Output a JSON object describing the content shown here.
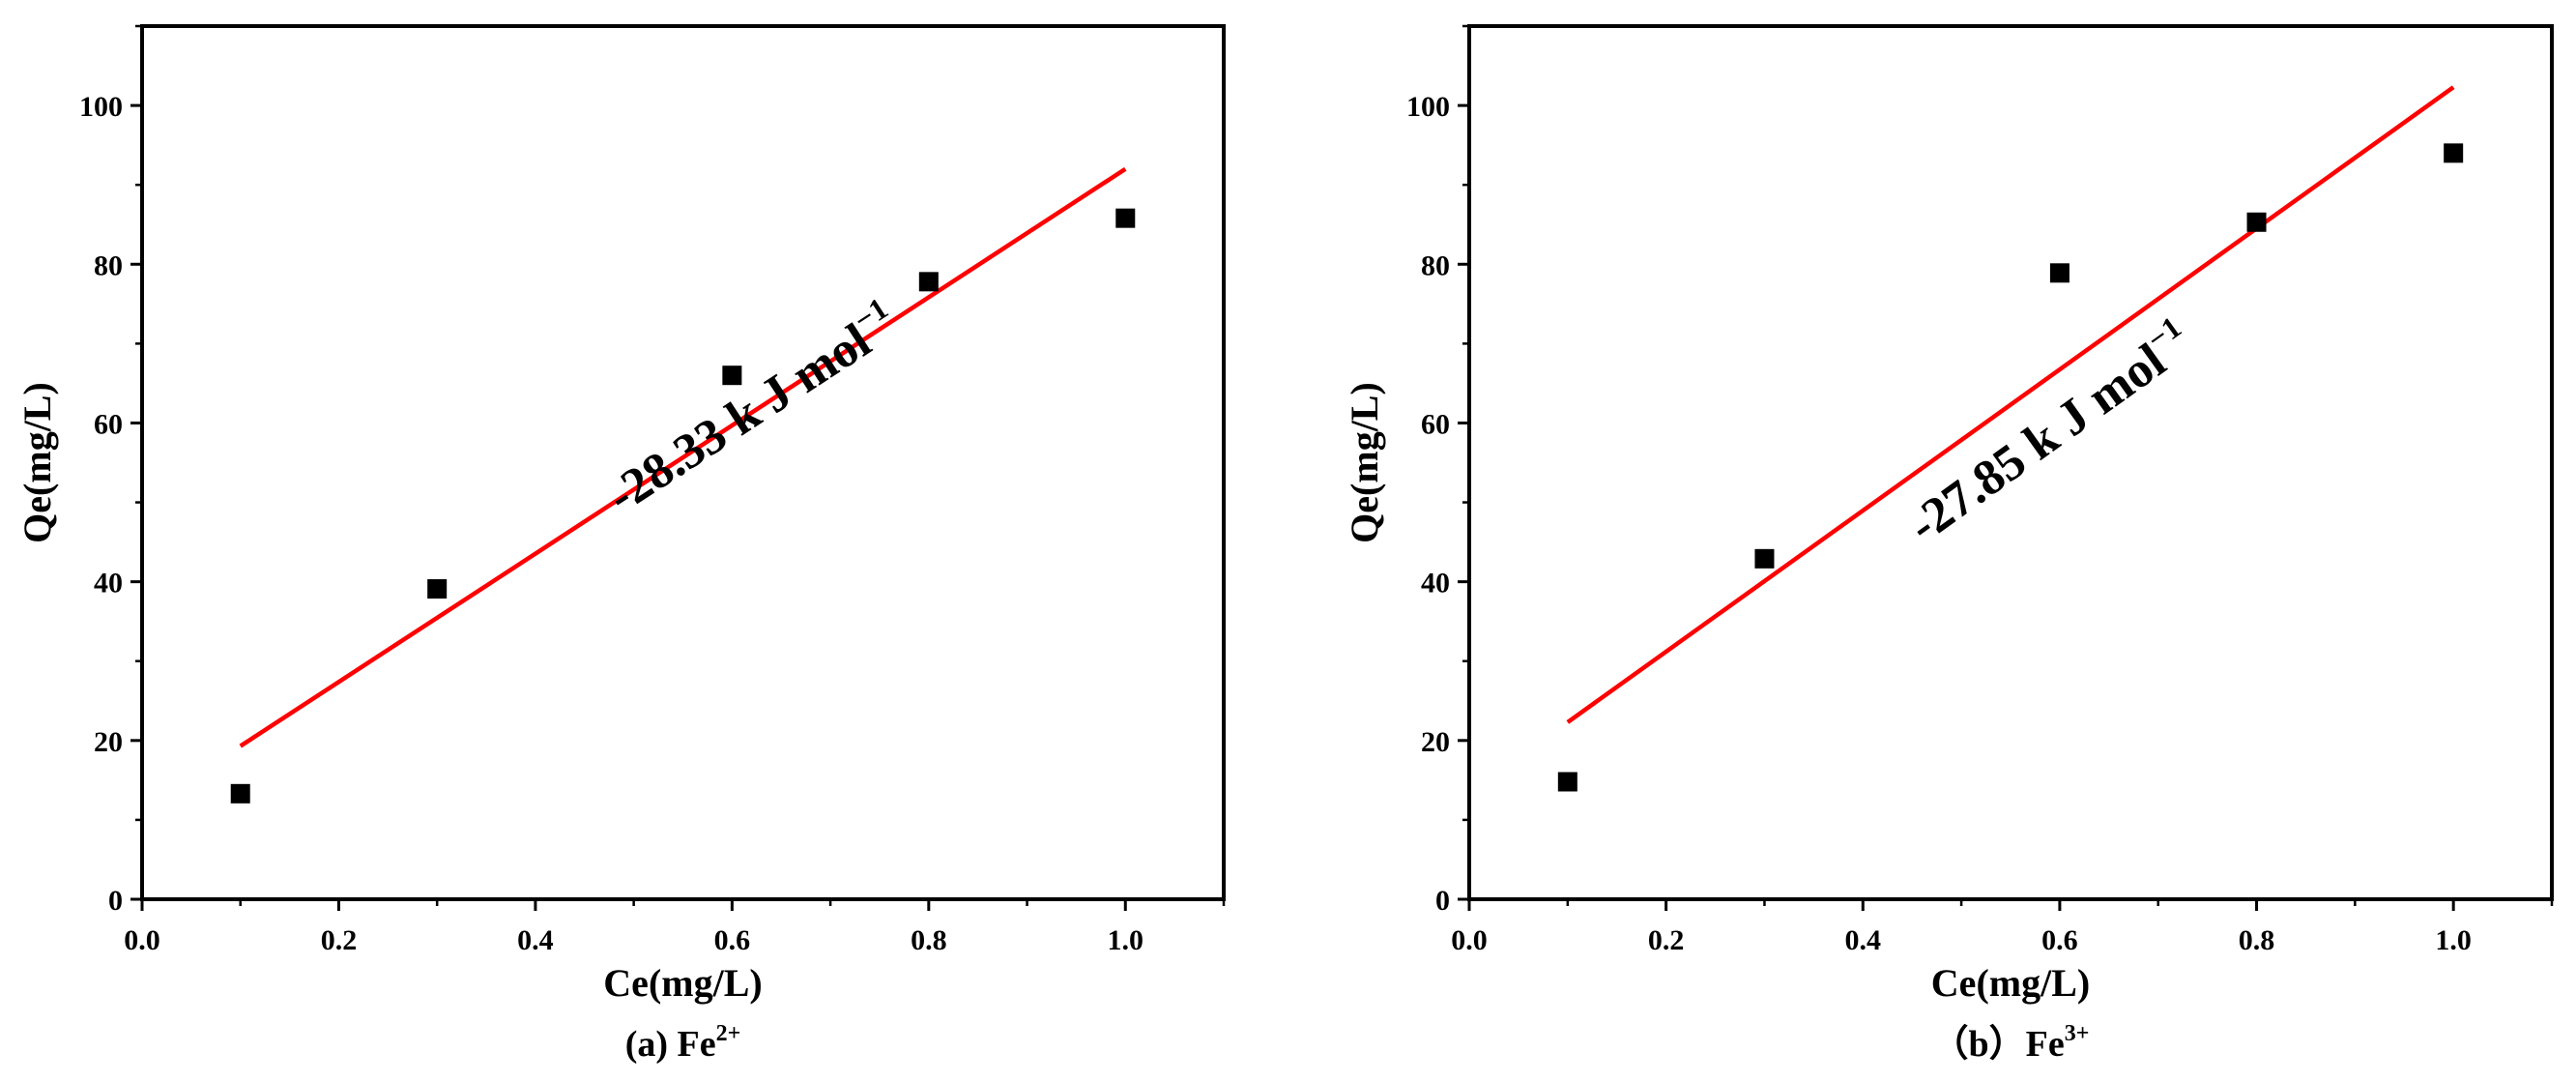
{
  "chart_data": [
    {
      "type": "scatter",
      "xlabel": "Ce(mg/L)",
      "ylabel": "Qe(mg/L)",
      "caption": {
        "prefix": "(a) Fe",
        "superscript": "2+"
      },
      "xlim": [
        0.0,
        1.1
      ],
      "ylim": [
        0,
        110
      ],
      "xticks": [
        0.0,
        0.2,
        0.4,
        0.6,
        0.8,
        1.0
      ],
      "xtick_labels": [
        "0.0",
        "0.2",
        "0.4",
        "0.6",
        "0.8",
        "1.0"
      ],
      "yticks": [
        0,
        20,
        40,
        60,
        80,
        100
      ],
      "ytick_labels": [
        "0",
        "20",
        "40",
        "60",
        "80",
        "100"
      ],
      "grid": false,
      "series": [
        {
          "x": [
            0.1,
            0.3,
            0.6,
            0.8,
            1.0
          ],
          "y": [
            13.3,
            39.1,
            66.0,
            77.8,
            85.8
          ],
          "marker": "square",
          "color": "#000000"
        }
      ],
      "fit_line": {
        "x": [
          0.1,
          1.0
        ],
        "y": [
          19.3,
          92.0
        ],
        "color": "#ff0000"
      },
      "annotation": {
        "text": "-28.33 k J mol",
        "superscript": "−1",
        "x": 0.63,
        "y": 60
      }
    },
    {
      "type": "scatter",
      "xlabel": "Ce(mg/L)",
      "ylabel": "Qe(mg/L)",
      "caption": {
        "prefix": "（b）Fe",
        "superscript": "3+"
      },
      "xlim": [
        0.0,
        1.1
      ],
      "ylim": [
        0,
        110
      ],
      "xticks": [
        0.0,
        0.2,
        0.4,
        0.6,
        0.8,
        1.0
      ],
      "xtick_labels": [
        "0.0",
        "0.2",
        "0.4",
        "0.6",
        "0.8",
        "1.0"
      ],
      "yticks": [
        0,
        20,
        40,
        60,
        80,
        100
      ],
      "ytick_labels": [
        "0",
        "20",
        "40",
        "60",
        "80",
        "100"
      ],
      "grid": false,
      "series": [
        {
          "x": [
            0.1,
            0.3,
            0.6,
            0.8,
            1.0
          ],
          "y": [
            14.8,
            42.9,
            78.9,
            85.3,
            94.0
          ],
          "marker": "square",
          "color": "#000000"
        }
      ],
      "fit_line": {
        "x": [
          0.1,
          1.0
        ],
        "y": [
          22.3,
          102.3
        ],
        "color": "#ff0000"
      },
      "annotation": {
        "text": "-27.85 k J mol",
        "superscript": "−1",
        "x": 0.6,
        "y": 57
      }
    }
  ]
}
